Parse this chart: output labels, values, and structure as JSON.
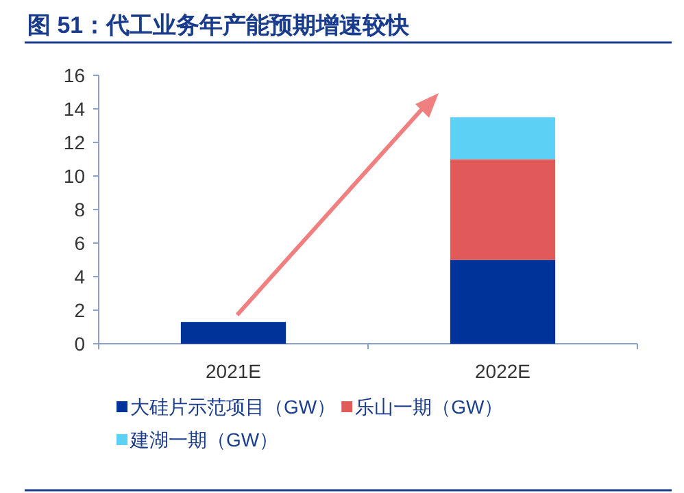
{
  "chart_data": {
    "type": "bar",
    "title": "图 51：代工业务年产能预期增速较快",
    "categories": [
      "2021E",
      "2022E"
    ],
    "stacked": true,
    "legend": "bottom",
    "ylim": [
      0,
      16
    ],
    "yticks": [
      0,
      2,
      4,
      6,
      8,
      10,
      12,
      14,
      16
    ],
    "series": [
      {
        "name": "大硅片示范项目（GW）",
        "color": "#003399",
        "values": [
          1.3,
          5
        ]
      },
      {
        "name": "乐山一期（GW）",
        "color": "#e05a5a",
        "values": [
          null,
          6
        ]
      },
      {
        "name": "建湖一期（GW）",
        "color": "#5dd0f5",
        "values": [
          null,
          2.5
        ]
      }
    ]
  }
}
